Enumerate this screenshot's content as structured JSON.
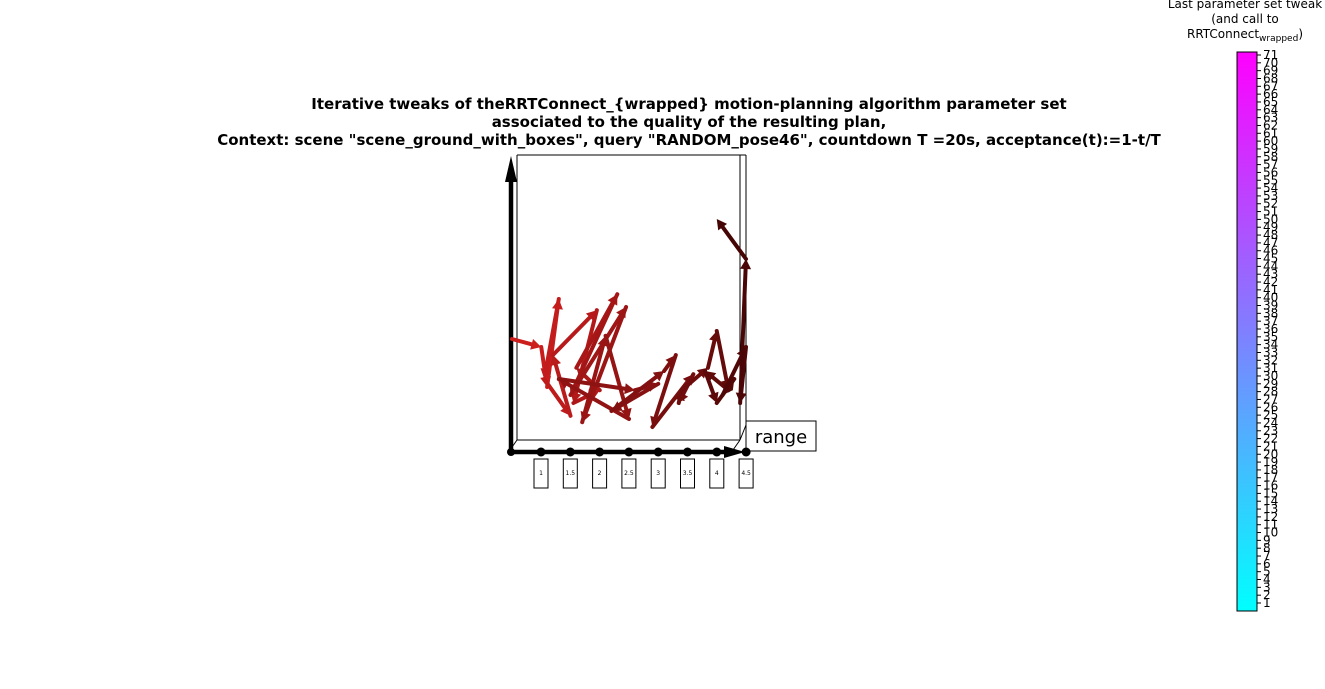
{
  "title_lines": [
    "Iterative tweaks of theRRTConnect_{wrapped} motion-planning algorithm parameter set",
    "associated to the quality of the resulting plan,",
    "Context: scene \"scene_ground_with_boxes\", query \"RANDOM_pose46\", countdown T =20s, acceptance(t):=1-t/T"
  ],
  "colorbar": {
    "title_line1": "Last parameter set tweak",
    "title_line2": "(and call to",
    "title_line3_main": "RRTConnect",
    "title_line3_sub": "wrapped",
    "title_line3_close": ")",
    "min": 1,
    "max": 71,
    "color_low": "#00ffff",
    "color_high": "#ff00ff"
  },
  "chart_data": {
    "type": "line",
    "subtype": "3d-arrow-path",
    "x_tick_labels": [
      "1",
      "1.5",
      "2",
      "2.5",
      "3",
      "3.5",
      "4",
      "4.5"
    ],
    "x_range": [
      0.5,
      4.5
    ],
    "axis_tag": "range",
    "arrow_color_hint": "dark red",
    "path": [
      {
        "x": 0.5,
        "y": 0.6
      },
      {
        "x": 1.0,
        "y": 0.55
      },
      {
        "x": 1.1,
        "y": 0.3
      },
      {
        "x": 1.3,
        "y": 0.85
      },
      {
        "x": 1.05,
        "y": 0.35
      },
      {
        "x": 1.5,
        "y": 0.12
      },
      {
        "x": 1.2,
        "y": 0.5
      },
      {
        "x": 1.95,
        "y": 0.78
      },
      {
        "x": 1.55,
        "y": 0.2
      },
      {
        "x": 2.0,
        "y": 0.28
      },
      {
        "x": 1.6,
        "y": 0.42
      },
      {
        "x": 2.3,
        "y": 0.88
      },
      {
        "x": 1.5,
        "y": 0.25
      },
      {
        "x": 2.45,
        "y": 0.8
      },
      {
        "x": 1.7,
        "y": 0.08
      },
      {
        "x": 2.1,
        "y": 0.62
      },
      {
        "x": 2.5,
        "y": 0.1
      },
      {
        "x": 1.3,
        "y": 0.35
      },
      {
        "x": 2.6,
        "y": 0.28
      },
      {
        "x": 3.0,
        "y": 0.32
      },
      {
        "x": 2.2,
        "y": 0.15
      },
      {
        "x": 3.1,
        "y": 0.4
      },
      {
        "x": 3.3,
        "y": 0.5
      },
      {
        "x": 2.9,
        "y": 0.05
      },
      {
        "x": 3.6,
        "y": 0.38
      },
      {
        "x": 3.35,
        "y": 0.2
      },
      {
        "x": 3.4,
        "y": 0.28
      },
      {
        "x": 3.85,
        "y": 0.42
      },
      {
        "x": 4.0,
        "y": 0.65
      },
      {
        "x": 4.2,
        "y": 0.28
      },
      {
        "x": 3.8,
        "y": 0.4
      },
      {
        "x": 4.0,
        "y": 0.2
      },
      {
        "x": 4.3,
        "y": 0.35
      },
      {
        "x": 4.1,
        "y": 0.25
      },
      {
        "x": 4.5,
        "y": 0.55
      },
      {
        "x": 4.4,
        "y": 0.2
      },
      {
        "x": 4.5,
        "y": 1.1
      },
      {
        "x": 4.0,
        "y": 1.35
      }
    ]
  }
}
